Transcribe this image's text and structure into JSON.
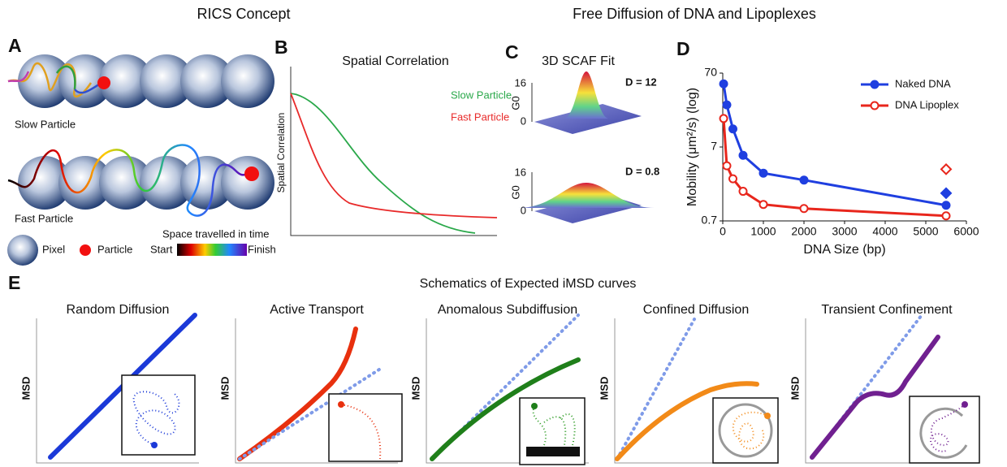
{
  "headers": {
    "rics": "RICS Concept",
    "free": "Free Diffusion of DNA and Lipoplexes"
  },
  "panel_a": {
    "letter": "A",
    "slow": "Slow Particle",
    "fast": "Fast Particle",
    "legend_pixel": "Pixel",
    "legend_particle": "Particle",
    "legend_title": "Space travelled in time",
    "start": "Start",
    "finish": "Finish"
  },
  "panel_b": {
    "letter": "B",
    "title": "Spatial Correlation",
    "y_label": "Spatial Correlation",
    "slow": "Slow Particle",
    "fast": "Fast Particle"
  },
  "panel_c": {
    "letter": "C",
    "title": "3D  SCAF Fit",
    "plots": [
      {
        "label": "D = 12",
        "y_label": "G0",
        "top_tick": "16",
        "bottom_tick": "0"
      },
      {
        "label": "D = 0.8",
        "y_label": "G0",
        "top_tick": "16",
        "bottom_tick": "0"
      }
    ]
  },
  "panel_e": {
    "letter": "E",
    "title": "Schematics of Expected iMSD curves",
    "y_label": "MSD",
    "plots": [
      "Random Diffusion",
      "Active Transport",
      "Anomalous Subdiffusion",
      "Confined Diffusion",
      "Transient Confinement"
    ]
  },
  "chart_data": {
    "type": "line",
    "panel": "D",
    "x_label": "DNA Size (bp)",
    "y_label": "Mobility (μm²/s) (log)",
    "x": [
      21,
      100,
      250,
      500,
      1000,
      2000,
      5500
    ],
    "series": [
      {
        "name": "Naked DNA",
        "color": "#1f3fe0",
        "filled": true,
        "values": [
          50,
          26,
          12.3,
          5.4,
          3.1,
          2.5,
          1.14
        ]
      },
      {
        "name": "DNA Lipoplex",
        "color": "#e8261c",
        "filled": false,
        "values": [
          17,
          3.9,
          2.6,
          1.76,
          1.17,
          1.03,
          0.82
        ]
      }
    ],
    "markers": [
      {
        "x": 5500,
        "y": 1.66,
        "color": "#1f3fe0",
        "filled": true
      },
      {
        "x": 5500,
        "y": 3.5,
        "color": "#e8261c",
        "filled": false
      }
    ],
    "xlim": [
      0,
      6000
    ],
    "xticks": [
      0,
      1000,
      2000,
      3000,
      4000,
      5000,
      6000
    ],
    "ylim": [
      0.7,
      70
    ],
    "yticks": [
      0.7,
      7,
      70
    ],
    "log_y": true,
    "legend": "upper right"
  }
}
